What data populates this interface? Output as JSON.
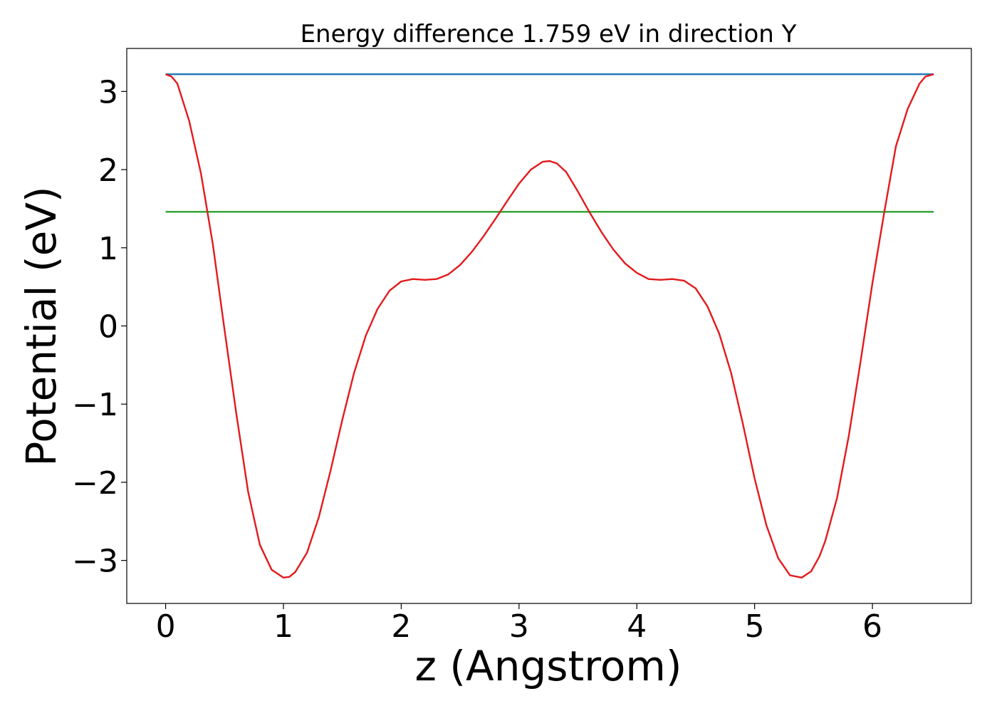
{
  "chart_data": {
    "type": "line",
    "title": "Energy difference 1.759 eV in direction Y",
    "xlabel": "z (Angstrom)",
    "ylabel": "Potential (eV)",
    "xlim": [
      -0.33,
      6.84
    ],
    "ylim": [
      -3.55,
      3.55
    ],
    "x_ticks": [
      0,
      1,
      2,
      3,
      4,
      5,
      6
    ],
    "x_tick_labels": [
      "0",
      "1",
      "2",
      "3",
      "4",
      "5",
      "6"
    ],
    "y_ticks": [
      -3,
      -2,
      -1,
      0,
      1,
      2,
      3
    ],
    "y_tick_labels": [
      "−3",
      "−2",
      "−1",
      "0",
      "1",
      "2",
      "3"
    ],
    "grid": false,
    "legend": "none",
    "series": [
      {
        "color": "#1f77b4",
        "x": [
          0,
          6.52
        ],
        "y": [
          3.22,
          3.22
        ]
      },
      {
        "color": "#2ca02c",
        "x": [
          0,
          6.52
        ],
        "y": [
          1.46,
          1.46
        ]
      },
      {
        "color": "#e31a1c",
        "x": [
          0,
          0.05,
          0.1,
          0.2,
          0.3,
          0.4,
          0.5,
          0.6,
          0.7,
          0.8,
          0.9,
          1.0,
          1.05,
          1.1,
          1.2,
          1.3,
          1.4,
          1.5,
          1.6,
          1.7,
          1.8,
          1.9,
          2.0,
          2.1,
          2.2,
          2.3,
          2.4,
          2.5,
          2.6,
          2.7,
          2.8,
          2.9,
          3.0,
          3.1,
          3.2,
          3.26,
          3.32,
          3.4,
          3.5,
          3.6,
          3.7,
          3.8,
          3.9,
          4.0,
          4.1,
          4.2,
          4.3,
          4.4,
          4.5,
          4.6,
          4.7,
          4.8,
          4.9,
          5.0,
          5.1,
          5.2,
          5.3,
          5.4,
          5.48,
          5.55,
          5.6,
          5.7,
          5.8,
          5.9,
          6.0,
          6.1,
          6.2,
          6.3,
          6.4,
          6.45,
          6.52
        ],
        "y": [
          3.22,
          3.19,
          3.1,
          2.62,
          1.95,
          1.05,
          -0.05,
          -1.12,
          -2.12,
          -2.8,
          -3.12,
          -3.22,
          -3.21,
          -3.15,
          -2.9,
          -2.45,
          -1.85,
          -1.2,
          -0.6,
          -0.12,
          0.22,
          0.45,
          0.57,
          0.6,
          0.59,
          0.6,
          0.66,
          0.78,
          0.95,
          1.15,
          1.37,
          1.6,
          1.82,
          2.0,
          2.1,
          2.11,
          2.08,
          1.97,
          1.72,
          1.45,
          1.2,
          0.98,
          0.8,
          0.68,
          0.6,
          0.59,
          0.6,
          0.58,
          0.48,
          0.25,
          -0.1,
          -0.6,
          -1.25,
          -1.95,
          -2.55,
          -2.97,
          -3.19,
          -3.22,
          -3.14,
          -2.95,
          -2.75,
          -2.2,
          -1.4,
          -0.45,
          0.55,
          1.45,
          2.3,
          2.78,
          3.1,
          3.19,
          3.22
        ]
      }
    ]
  }
}
